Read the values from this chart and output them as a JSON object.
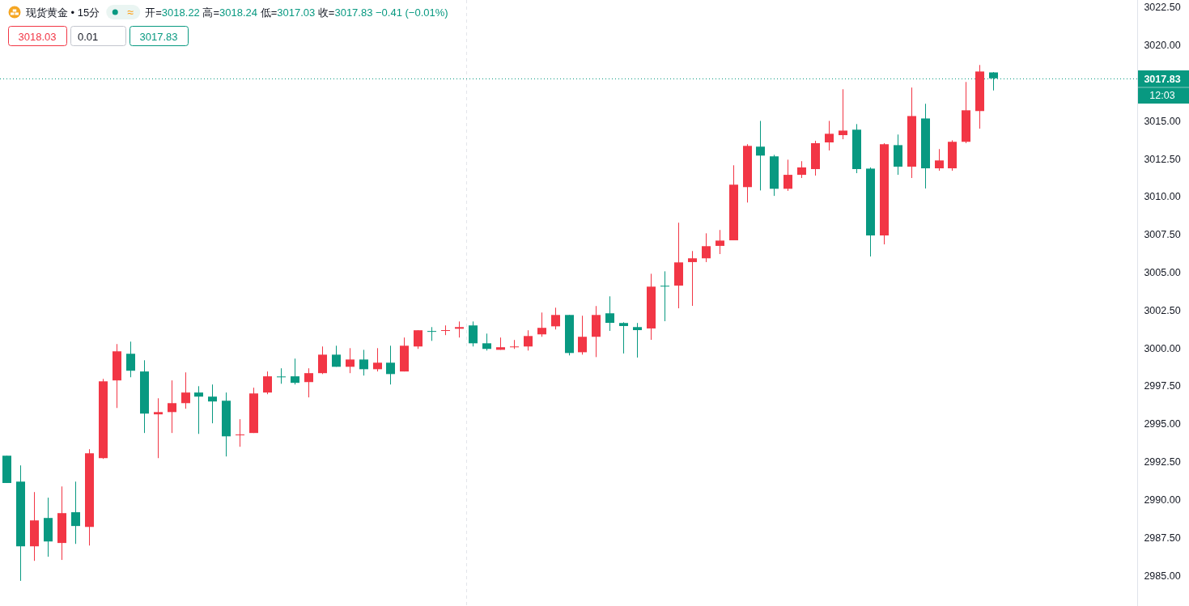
{
  "chart_data": {
    "type": "candlestick",
    "title": "现货黄金 • 15分",
    "subtitle": "开=3018.22 高=3018.24 低=3017.03 收=3017.83 −0.41 (−0.01%)",
    "categories": [
      null,
      null,
      null,
      null,
      null,
      null,
      null,
      null,
      null,
      null,
      null,
      null,
      null,
      null,
      null,
      null,
      null,
      null,
      null,
      null,
      null,
      null,
      null,
      null,
      null,
      null,
      null,
      null,
      null,
      null,
      null,
      null,
      null,
      null,
      null,
      null,
      null,
      null,
      null,
      null,
      null,
      null,
      null,
      null,
      null,
      null,
      null,
      null,
      null,
      null,
      null,
      null,
      null,
      null,
      null,
      null,
      null,
      null,
      null,
      null,
      null,
      null,
      null,
      null,
      null,
      null,
      null,
      null,
      null,
      null,
      null,
      null,
      null,
      null,
      null,
      null,
      null,
      null,
      null,
      null,
      null,
      null,
      null
    ],
    "ohlc": [
      [
        2992.92,
        2992.92,
        2991.12,
        2991.12
      ],
      [
        2991.21,
        2992.28,
        2984.66,
        2986.94
      ],
      [
        2986.94,
        2990.52,
        2985.98,
        2988.65
      ],
      [
        2988.81,
        2990.15,
        2986.25,
        2987.26
      ],
      [
        2987.16,
        2990.89,
        2986.04,
        2989.13
      ],
      [
        2989.19,
        2991.21,
        2987.1,
        2988.28
      ],
      [
        2988.22,
        2993.35,
        2986.99,
        2993.08
      ],
      [
        2992.76,
        2997.99,
        2992.71,
        2997.83
      ],
      [
        2997.89,
        3000.29,
        2996.07,
        2999.81
      ],
      [
        2999.65,
        3000.45,
        2998.1,
        2998.53
      ],
      [
        2998.48,
        2999.22,
        2994.42,
        2995.7
      ],
      [
        2995.65,
        2996.71,
        2992.76,
        2995.8
      ],
      [
        2995.8,
        2997.89,
        2994.42,
        2996.39
      ],
      [
        2996.39,
        2998.42,
        2996.02,
        2997.09
      ],
      [
        2997.09,
        2997.51,
        2994.36,
        2996.82
      ],
      [
        2996.82,
        2997.62,
        2995.06,
        2996.5
      ],
      [
        2996.55,
        2997.09,
        2992.87,
        2994.2
      ],
      [
        2994.3,
        2995.33,
        2993.51,
        2994.32
      ],
      [
        2994.42,
        2997.41,
        2994.42,
        2997.03
      ],
      [
        2997.09,
        2998.48,
        2996.98,
        2998.16
      ],
      [
        2998.15,
        2998.69,
        2997.67,
        2998.13
      ],
      [
        2998.16,
        2999.33,
        2997.62,
        2997.73
      ],
      [
        2997.78,
        2998.69,
        2996.77,
        2998.37
      ],
      [
        2998.37,
        3000.13,
        2998.31,
        2999.59
      ],
      [
        2999.59,
        3000.18,
        2998.79,
        2998.79
      ],
      [
        2998.79,
        3000.02,
        2998.37,
        2999.27
      ],
      [
        2999.27,
        2999.91,
        2998.21,
        2998.63
      ],
      [
        2998.63,
        3000.02,
        2998.48,
        2999.06
      ],
      [
        2999.06,
        3000.18,
        2997.62,
        2998.31
      ],
      [
        2998.48,
        3000.72,
        2998.48,
        3000.18
      ],
      [
        3000.13,
        3001.2,
        2999.97,
        3001.2
      ],
      [
        3001.15,
        3001.41,
        3000.5,
        3001.13
      ],
      [
        3001.19,
        3001.52,
        3000.88,
        3001.21
      ],
      [
        3001.3,
        3001.78,
        3000.72,
        3001.41
      ],
      [
        3001.52,
        3001.78,
        3000.13,
        3000.34
      ],
      [
        3000.34,
        3000.98,
        2999.86,
        2999.97
      ],
      [
        2999.91,
        3000.72,
        2999.91,
        3000.08
      ],
      [
        3000.11,
        3000.56,
        2999.97,
        3000.13
      ],
      [
        3000.13,
        3001.2,
        2999.86,
        3000.82
      ],
      [
        3000.93,
        3002.37,
        3000.77,
        3001.36
      ],
      [
        3001.46,
        3002.69,
        3001.25,
        3002.21
      ],
      [
        3002.21,
        3002.21,
        2999.54,
        2999.7
      ],
      [
        2999.75,
        3002.16,
        2999.59,
        3000.77
      ],
      [
        3000.77,
        3002.8,
        2999.43,
        3002.21
      ],
      [
        3002.32,
        3003.44,
        3001.16,
        3001.69
      ],
      [
        3001.68,
        3001.73,
        2999.67,
        3001.48
      ],
      [
        3001.41,
        3001.68,
        2999.4,
        3001.21
      ],
      [
        3001.32,
        3004.93,
        3000.57,
        3004.08
      ],
      [
        3004.14,
        3005.09,
        3001.8,
        3004.12
      ],
      [
        3004.15,
        3008.3,
        3002.65,
        3005.68
      ],
      [
        3005.7,
        3006.43,
        3002.81,
        3005.95
      ],
      [
        3005.95,
        3007.6,
        3005.7,
        3006.75
      ],
      [
        3006.77,
        3007.82,
        3006.23,
        3007.12
      ],
      [
        3007.14,
        3012.09,
        3007.14,
        3010.81
      ],
      [
        3010.65,
        3013.48,
        3009.63,
        3013.37
      ],
      [
        3013.32,
        3015.02,
        3010.43,
        3012.73
      ],
      [
        3012.68,
        3012.78,
        3010.07,
        3010.54
      ],
      [
        3010.54,
        3012.46,
        3010.4,
        3011.46
      ],
      [
        3011.46,
        3012.36,
        3011.25,
        3011.95
      ],
      [
        3011.84,
        3013.71,
        3011.41,
        3013.55
      ],
      [
        3013.6,
        3015.02,
        3013.07,
        3014.17
      ],
      [
        3014.08,
        3017.11,
        3013.81,
        3014.38
      ],
      [
        3014.44,
        3014.81,
        3011.57,
        3011.84
      ],
      [
        3011.87,
        3011.95,
        3006.07,
        3007.46
      ],
      [
        3007.46,
        3013.55,
        3006.87,
        3013.48
      ],
      [
        3013.42,
        3014.12,
        3011.46,
        3012.0
      ],
      [
        3012.0,
        3017.22,
        3011.25,
        3015.34
      ],
      [
        3015.18,
        3016.15,
        3010.56,
        3011.89
      ],
      [
        3011.89,
        3013.16,
        3011.73,
        3012.41
      ],
      [
        3011.89,
        3013.74,
        3011.73,
        3013.64
      ],
      [
        3013.64,
        3017.59,
        3013.55,
        3015.72
      ],
      [
        3015.67,
        3018.71,
        3014.51,
        3018.28
      ],
      [
        3018.22,
        3018.24,
        3017.03,
        3017.83
      ],
      null,
      null,
      null,
      null,
      null,
      null,
      null,
      null,
      null,
      null
    ],
    "colors": [
      "#089981",
      "#089981",
      "#f23645",
      "#089981",
      "#f23645",
      "#089981",
      "#f23645",
      "#f23645",
      "#f23645",
      "#089981",
      "#089981",
      "#f23645",
      "#f23645",
      "#f23645",
      "#089981",
      "#089981",
      "#089981",
      "#f23645",
      "#f23645",
      "#f23645",
      "#089981",
      "#089981",
      "#f23645",
      "#f23645",
      "#089981",
      "#f23645",
      "#089981",
      "#f23645",
      "#089981",
      "#f23645",
      "#f23645",
      "#089981",
      "#f23645",
      "#f23645",
      "#089981",
      "#089981",
      "#f23645",
      "#f23645",
      "#f23645",
      "#f23645",
      "#f23645",
      "#089981",
      "#f23645",
      "#f23645",
      "#089981",
      "#089981",
      "#089981",
      "#f23645",
      "#089981",
      "#f23645",
      "#f23645",
      "#f23645",
      "#f23645",
      "#f23645",
      "#f23645",
      "#089981",
      "#089981",
      "#f23645",
      "#f23645",
      "#f23645",
      "#f23645",
      "#f23645",
      "#089981",
      "#089981",
      "#f23645",
      "#089981",
      "#f23645",
      "#089981",
      "#f23645",
      "#f23645",
      "#f23645",
      "#f23645",
      "#089981",
      null,
      null,
      null,
      null,
      null,
      null,
      null,
      null,
      null,
      null
    ],
    "ylim": [
      2983.0,
      3023.0
    ],
    "yticks": [
      {
        "value": 2985,
        "label": "2985.00"
      },
      {
        "value": 2987.5,
        "label": "2987.50"
      },
      {
        "value": 2990,
        "label": "2990.00"
      },
      {
        "value": 2992.5,
        "label": "2992.50"
      },
      {
        "value": 2995,
        "label": "2995.00"
      },
      {
        "value": 2997.5,
        "label": "2997.50"
      },
      {
        "value": 3000,
        "label": "3000.00"
      },
      {
        "value": 3002.5,
        "label": "3002.50"
      },
      {
        "value": 3005,
        "label": "3005.00"
      },
      {
        "value": 3007.5,
        "label": "3007.50"
      },
      {
        "value": 3010,
        "label": "3010.00"
      },
      {
        "value": 3012.5,
        "label": "3012.50"
      },
      {
        "value": 3015,
        "label": "3015.00"
      },
      {
        "value": 3020,
        "label": "3020.00"
      },
      {
        "value": 3022.5,
        "label": "3022.50"
      }
    ],
    "tick_labels": "y",
    "grid": false,
    "ref_lines": [
      {
        "axis": "y",
        "value": 3017.83,
        "label": "3017.83",
        "color": "#089981",
        "line_style": "dotted"
      }
    ],
    "annotations": [
      "≈",
      "3018.03",
      "0.01",
      "3017.83",
      "12:03"
    ]
  }
}
